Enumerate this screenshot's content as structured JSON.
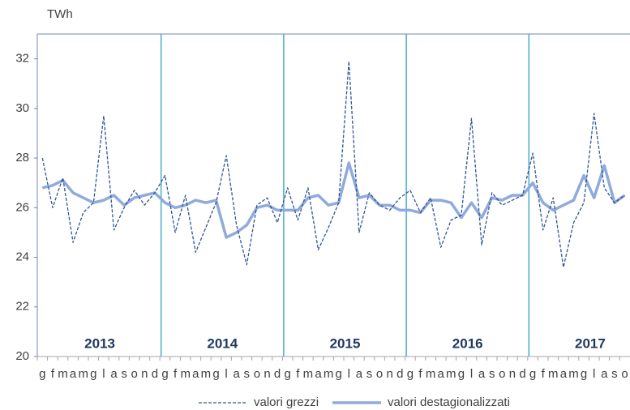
{
  "chart_data": {
    "type": "line",
    "y_unit": "TWh",
    "categories": [
      "g",
      "f",
      "m",
      "a",
      "m",
      "g",
      "l",
      "a",
      "s",
      "o",
      "n",
      "d",
      "g",
      "f",
      "m",
      "a",
      "m",
      "g",
      "l",
      "a",
      "s",
      "o",
      "n",
      "d",
      "g",
      "f",
      "m",
      "a",
      "m",
      "g",
      "l",
      "a",
      "s",
      "o",
      "n",
      "d",
      "g",
      "f",
      "m",
      "a",
      "m",
      "g",
      "l",
      "a",
      "s",
      "o",
      "n",
      "d",
      "g",
      "f",
      "m",
      "a",
      "m",
      "g",
      "l",
      "a",
      "s",
      "o"
    ],
    "years": [
      "2013",
      "2014",
      "2015",
      "2016",
      "2017"
    ],
    "series": [
      {
        "name": "valori grezzi",
        "color": "#2f5597",
        "dash": true,
        "values": [
          28.0,
          26.0,
          27.2,
          24.6,
          25.8,
          26.2,
          29.7,
          25.1,
          26.0,
          26.7,
          26.1,
          26.6,
          27.3,
          25.0,
          26.5,
          24.2,
          25.2,
          26.2,
          28.1,
          25.3,
          23.7,
          26.1,
          26.4,
          25.4,
          26.8,
          25.5,
          26.8,
          24.3,
          25.2,
          26.2,
          31.9,
          25.0,
          26.6,
          26.1,
          25.9,
          26.4,
          26.7,
          25.8,
          26.4,
          24.4,
          25.5,
          25.7,
          29.6,
          24.5,
          26.6,
          26.1,
          26.3,
          26.5,
          28.2,
          25.1,
          26.4,
          23.6,
          25.4,
          26.2,
          29.8,
          26.8,
          26.2,
          26.5
        ]
      },
      {
        "name": "valori destagionalizzati",
        "color": "#8faadc",
        "dash": false,
        "values": [
          26.8,
          26.9,
          27.1,
          26.6,
          26.4,
          26.2,
          26.3,
          26.5,
          26.1,
          26.4,
          26.5,
          26.6,
          26.2,
          26.0,
          26.1,
          26.3,
          26.2,
          26.3,
          24.8,
          25.0,
          25.3,
          26.0,
          26.1,
          25.9,
          25.9,
          25.9,
          26.4,
          26.5,
          26.1,
          26.2,
          27.8,
          26.4,
          26.5,
          26.1,
          26.1,
          25.9,
          25.9,
          25.8,
          26.3,
          26.3,
          26.2,
          25.6,
          26.2,
          25.6,
          26.4,
          26.3,
          26.5,
          26.5,
          27.0,
          26.2,
          25.9,
          26.1,
          26.3,
          27.3,
          26.4,
          27.7,
          26.2,
          26.5
        ]
      }
    ],
    "ylim": [
      20,
      33
    ],
    "yticks": [
      20,
      22,
      24,
      26,
      28,
      30,
      32
    ],
    "grid": false
  }
}
